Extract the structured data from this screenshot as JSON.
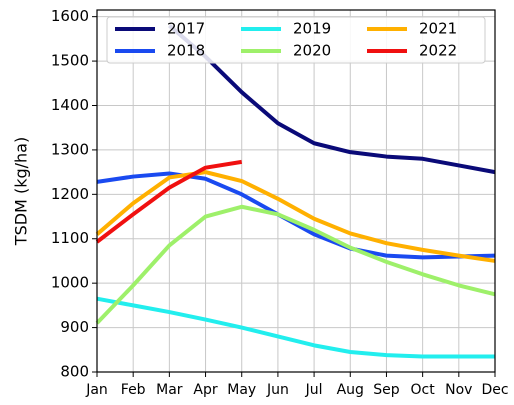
{
  "chart_data": {
    "type": "line",
    "ylabel": "TSDM (kg/ha)",
    "categories": [
      "Jan",
      "Feb",
      "Mar",
      "Apr",
      "May",
      "Jun",
      "Jul",
      "Aug",
      "Sep",
      "Oct",
      "Nov",
      "Dec"
    ],
    "series": [
      {
        "name": "2017",
        "color": "#0a0a78",
        "values": [
          null,
          null,
          1580,
          1510,
          1430,
          1360,
          1315,
          1295,
          1285,
          1280,
          1265,
          1250
        ]
      },
      {
        "name": "2018",
        "color": "#1a4af0",
        "values": [
          1228,
          1240,
          1247,
          1235,
          1200,
          1155,
          1110,
          1078,
          1062,
          1058,
          1060,
          1062
        ]
      },
      {
        "name": "2019",
        "color": "#22eeee",
        "values": [
          965,
          950,
          935,
          918,
          900,
          880,
          860,
          845,
          838,
          835,
          835,
          835
        ]
      },
      {
        "name": "2020",
        "color": "#9ef06a",
        "values": [
          910,
          995,
          1085,
          1150,
          1172,
          1155,
          1120,
          1080,
          1048,
          1020,
          995,
          975
        ]
      },
      {
        "name": "2021",
        "color": "#ffb000",
        "values": [
          1110,
          1180,
          1238,
          1250,
          1230,
          1190,
          1145,
          1112,
          1090,
          1075,
          1062,
          1050
        ]
      },
      {
        "name": "2022",
        "color": "#f01010",
        "values": [
          1093,
          1155,
          1215,
          1260,
          1273,
          null,
          null,
          null,
          null,
          null,
          null,
          null
        ]
      }
    ],
    "ylim": [
      800,
      1615
    ],
    "yticks": [
      800,
      900,
      1000,
      1100,
      1200,
      1300,
      1400,
      1500,
      1600
    ],
    "grid": true,
    "legend": "upper left"
  }
}
